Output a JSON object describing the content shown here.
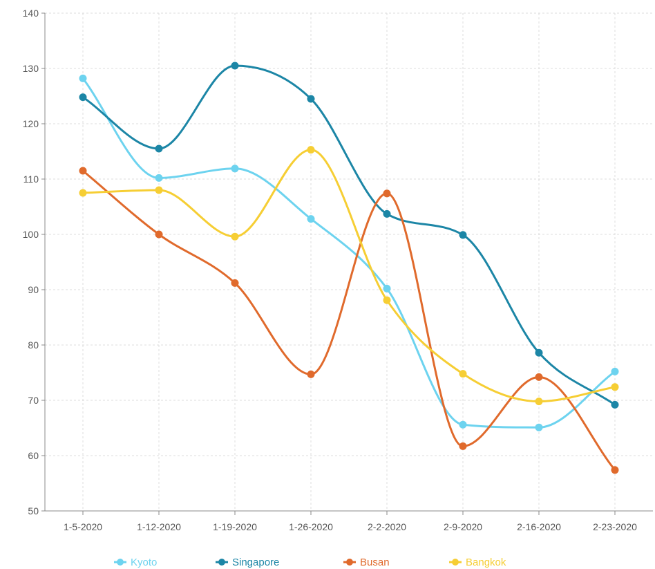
{
  "chart_data": {
    "type": "line",
    "title": "",
    "xlabel": "",
    "ylabel": "",
    "categories": [
      "1-5-2020",
      "1-12-2020",
      "1-19-2020",
      "1-26-2020",
      "2-2-2020",
      "2-9-2020",
      "2-16-2020",
      "2-23-2020"
    ],
    "ylim": [
      50,
      140
    ],
    "yticks": [
      50,
      60,
      70,
      80,
      90,
      100,
      110,
      120,
      130,
      140
    ],
    "grid": true,
    "smooth": true,
    "legend_position": "bottom",
    "series": [
      {
        "name": "Kyoto",
        "color": "#6dd3ef",
        "values": [
          128.2,
          110.2,
          111.9,
          102.8,
          90.2,
          65.6,
          65.1,
          75.2
        ]
      },
      {
        "name": "Singapore",
        "color": "#1c86a6",
        "values": [
          124.8,
          115.5,
          130.5,
          124.5,
          103.7,
          99.9,
          78.6,
          69.2
        ]
      },
      {
        "name": "Busan",
        "color": "#e06a2c",
        "values": [
          111.5,
          100.0,
          91.2,
          74.7,
          107.4,
          61.7,
          74.2,
          57.4
        ]
      },
      {
        "name": "Bangkok",
        "color": "#f6ce34",
        "values": [
          107.5,
          108.0,
          99.6,
          115.3,
          88.1,
          74.8,
          69.8,
          72.4
        ]
      }
    ]
  }
}
